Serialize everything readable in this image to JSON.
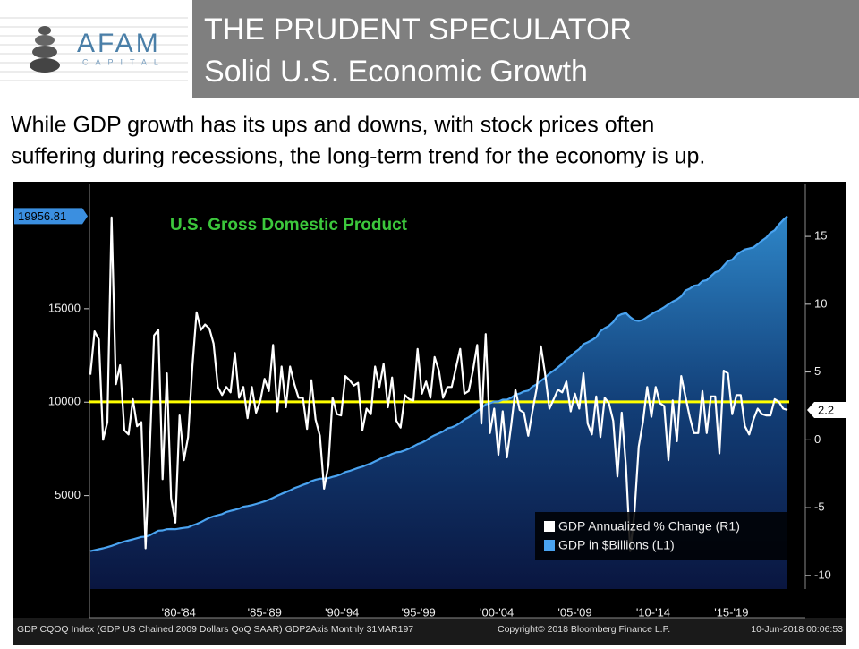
{
  "header": {
    "logo": "AFAM",
    "logo_sub": "CAPITAL",
    "title": "THE PRUDENT SPECULATOR",
    "subtitle": "Solid U.S. Economic Growth"
  },
  "body": [
    "While GDP growth has its ups and downs, with stock prices often",
    "suffering during recessions, the long-term trend for the economy is up."
  ],
  "chart_data": {
    "type": "line",
    "title": "U.S. Gross Domestic Product",
    "source": "GDP CQOQ Index (GDP US Chained 2009 Dollars QoQ SAAR) GDP2Axis  Monthly 31MAR197",
    "copyright": "Copyright© 2018 Bloomberg Finance L.P.",
    "timestamp": "10-Jun-2018 00:06:53",
    "xlim": [
      1976.95,
      2019.05
    ],
    "xticks": [
      {
        "value": 1982.2,
        "label": "'80-'84"
      },
      {
        "value": 1987.25,
        "label": "'85-'89"
      },
      {
        "value": 1991.8,
        "label": "'90-'94"
      },
      {
        "value": 1996.3,
        "label": "'95-'99"
      },
      {
        "value": 2000.9,
        "label": "'00-'04"
      },
      {
        "value": 2005.5,
        "label": "'05-'09"
      },
      {
        "value": 2010.1,
        "label": "'10-'14"
      },
      {
        "value": 2014.7,
        "label": "'15-'19"
      }
    ],
    "ylim": [
      0,
      21700
    ],
    "yticks": [
      5000,
      10000,
      15000
    ],
    "y2lim": [
      -11,
      18.9
    ],
    "y2ticks": [
      -10,
      -5,
      0,
      5,
      10,
      15
    ],
    "grid": false,
    "legend": "lower right",
    "reference_line": {
      "value": 2.8,
      "axis": "y2",
      "color": "#ffff00"
    },
    "x": [
      1977,
      1977.25,
      1977.5,
      1977.75,
      1978,
      1978.25,
      1978.5,
      1978.75,
      1979,
      1979.25,
      1979.5,
      1979.75,
      1980,
      1980.25,
      1980.5,
      1980.75,
      1981,
      1981.25,
      1981.5,
      1981.75,
      1982,
      1982.25,
      1982.5,
      1982.75,
      1983,
      1983.25,
      1983.5,
      1983.75,
      1984,
      1984.25,
      1984.5,
      1984.75,
      1985,
      1985.25,
      1985.5,
      1985.75,
      1986,
      1986.25,
      1986.5,
      1986.75,
      1987,
      1987.25,
      1987.5,
      1987.75,
      1988,
      1988.25,
      1988.5,
      1988.75,
      1989,
      1989.25,
      1989.5,
      1989.75,
      1990,
      1990.25,
      1990.5,
      1990.75,
      1991,
      1991.25,
      1991.5,
      1991.75,
      1992,
      1992.25,
      1992.5,
      1992.75,
      1993,
      1993.25,
      1993.5,
      1993.75,
      1994,
      1994.25,
      1994.5,
      1994.75,
      1995,
      1995.25,
      1995.5,
      1995.75,
      1996,
      1996.25,
      1996.5,
      1996.75,
      1997,
      1997.25,
      1997.5,
      1997.75,
      1998,
      1998.25,
      1998.5,
      1998.75,
      1999,
      1999.25,
      1999.5,
      1999.75,
      2000,
      2000.25,
      2000.5,
      2000.75,
      2001,
      2001.25,
      2001.5,
      2001.75,
      2002,
      2002.25,
      2002.5,
      2002.75,
      2003,
      2003.25,
      2003.5,
      2003.75,
      2004,
      2004.25,
      2004.5,
      2004.75,
      2005,
      2005.25,
      2005.5,
      2005.75,
      2006,
      2006.25,
      2006.5,
      2006.75,
      2007,
      2007.25,
      2007.5,
      2007.75,
      2008,
      2008.25,
      2008.5,
      2008.75,
      2009,
      2009.25,
      2009.5,
      2009.75,
      2010,
      2010.25,
      2010.5,
      2010.75,
      2011,
      2011.25,
      2011.5,
      2011.75,
      2012,
      2012.25,
      2012.5,
      2012.75,
      2013,
      2013.25,
      2013.5,
      2013.75,
      2014,
      2014.25,
      2014.5,
      2014.75,
      2015,
      2015.25,
      2015.5,
      2015.75,
      2016,
      2016.25,
      2016.5,
      2016.75,
      2017,
      2017.25,
      2017.5,
      2017.75,
      2018
    ],
    "series": [
      {
        "name": "GDP Annualized % Change (R1)",
        "color": "#ffffff",
        "axis": "y2",
        "values": [
          4.8,
          8.0,
          7.4,
          0.0,
          1.3,
          16.4,
          4.1,
          5.5,
          0.7,
          0.4,
          3.0,
          1.0,
          1.3,
          -8.0,
          -0.5,
          7.7,
          8.1,
          -2.9,
          4.9,
          -4.3,
          -6.1,
          1.8,
          -1.5,
          0.2,
          5.4,
          9.4,
          8.1,
          8.5,
          8.2,
          7.1,
          3.9,
          3.3,
          3.9,
          3.5,
          6.4,
          3.1,
          3.9,
          1.6,
          3.9,
          2.0,
          2.9,
          4.5,
          3.6,
          7.0,
          2.1,
          5.4,
          2.4,
          5.4,
          4.1,
          3.1,
          3.1,
          0.8,
          4.4,
          1.5,
          0.3,
          -3.6,
          -1.9,
          3.1,
          1.9,
          1.8,
          4.7,
          4.4,
          4.0,
          4.2,
          0.7,
          2.3,
          1.9,
          5.4,
          3.9,
          5.6,
          2.4,
          4.6,
          1.4,
          0.9,
          3.3,
          3.0,
          2.9,
          6.7,
          3.4,
          4.3,
          3.1,
          6.1,
          5.1,
          3.1,
          3.9,
          3.9,
          5.3,
          6.7,
          3.4,
          3.6,
          5.1,
          7.0,
          1.2,
          7.8,
          0.5,
          2.3,
          -1.1,
          2.1,
          -1.3,
          1.1,
          3.7,
          2.2,
          2.0,
          0.3,
          2.1,
          3.8,
          6.9,
          4.8,
          2.3,
          3.0,
          3.7,
          3.5,
          4.3,
          2.1,
          3.4,
          2.3,
          4.9,
          1.2,
          0.4,
          3.2,
          0.2,
          3.1,
          2.7,
          1.4,
          -2.7,
          2.0,
          -1.9,
          -8.2,
          -5.4,
          -0.5,
          1.3,
          3.9,
          1.7,
          3.9,
          2.7,
          2.5,
          -1.5,
          2.9,
          -0.1,
          4.7,
          3.2,
          1.7,
          0.5,
          0.5,
          3.6,
          0.5,
          3.2,
          3.2,
          -1.0,
          5.1,
          4.9,
          1.9,
          3.3,
          3.3,
          1.0,
          0.4,
          1.5,
          2.3,
          1.9,
          1.8,
          1.8,
          3.0,
          2.8,
          2.3,
          2.2
        ]
      },
      {
        "name": "GDP in $Billions (L1)",
        "color": "#4aa3f0",
        "axis": "y",
        "area": true,
        "values": [
          2031,
          2080,
          2130,
          2180,
          2240,
          2310,
          2390,
          2470,
          2545,
          2600,
          2660,
          2720,
          2790,
          2800,
          2880,
          3000,
          3125,
          3140,
          3200,
          3210,
          3200,
          3240,
          3270,
          3300,
          3400,
          3480,
          3580,
          3700,
          3810,
          3890,
          3950,
          4010,
          4120,
          4180,
          4240,
          4300,
          4400,
          4440,
          4490,
          4550,
          4620,
          4690,
          4780,
          4880,
          4990,
          5090,
          5190,
          5280,
          5400,
          5480,
          5570,
          5650,
          5770,
          5850,
          5900,
          5910,
          5930,
          6000,
          6060,
          6140,
          6260,
          6320,
          6400,
          6480,
          6550,
          6640,
          6720,
          6830,
          6940,
          7050,
          7130,
          7230,
          7310,
          7340,
          7420,
          7510,
          7630,
          7750,
          7830,
          7950,
          8110,
          8230,
          8330,
          8430,
          8600,
          8650,
          8750,
          8890,
          9070,
          9190,
          9340,
          9520,
          9680,
          9880,
          9940,
          10030,
          10030,
          10130,
          10130,
          10230,
          10400,
          10460,
          10570,
          10620,
          10830,
          10950,
          11140,
          11310,
          11530,
          11690,
          11860,
          12050,
          12300,
          12460,
          12670,
          12840,
          13100,
          13200,
          13320,
          13470,
          13800,
          13960,
          14080,
          14290,
          14600,
          14710,
          14770,
          14550,
          14380,
          14340,
          14400,
          14560,
          14700,
          14840,
          14940,
          15080,
          15240,
          15380,
          15490,
          15660,
          15970,
          16070,
          16230,
          16270,
          16480,
          16530,
          16740,
          16950,
          17030,
          17300,
          17550,
          17620,
          17870,
          18040,
          18170,
          18220,
          18280,
          18450,
          18640,
          18800,
          19060,
          19200,
          19500,
          19750,
          19956.81
        ]
      }
    ]
  }
}
